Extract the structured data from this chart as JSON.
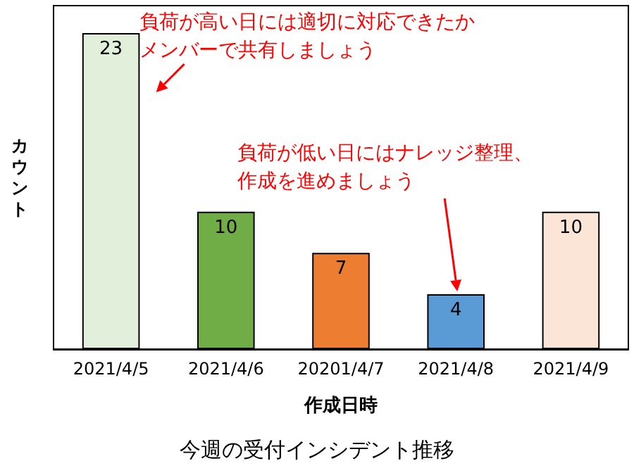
{
  "chart_data": {
    "type": "bar",
    "title": "今週の受付インシデント推移",
    "xlabel": "作成日時",
    "ylabel": "カウント",
    "categories": [
      "2021/4/5",
      "2021/4/6",
      "20201/4/7",
      "2021/4/8",
      "2021/4/9"
    ],
    "values": [
      23,
      10,
      7,
      4,
      10
    ],
    "colors": [
      "#e2efda",
      "#70ad47",
      "#ed7d31",
      "#5b9bd5",
      "#fbe5d6"
    ],
    "data_labels": true,
    "grid": false,
    "annotations": [
      {
        "text": "負荷が高い日には適切に対応できたかメンバーで共有しましょう",
        "x": "2021/4/5",
        "y": 23
      },
      "負荷が低い日にはナレッジ整理、作成を進めましょう"
    ]
  }
}
